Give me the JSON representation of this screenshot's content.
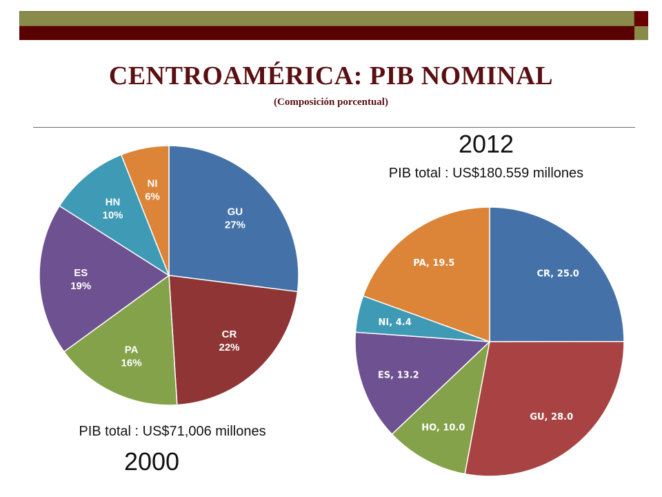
{
  "header": {
    "title": "CENTROAMÉRICA: PIB NOMINAL",
    "subtitle": "(Composición porcentual)"
  },
  "chart_data": [
    {
      "type": "pie",
      "year": "2000",
      "total": "PIB total :  US$71,006  millones",
      "slices": [
        {
          "label": "GU",
          "value": 27,
          "display": "27%",
          "color": "#4472a8"
        },
        {
          "label": "CR",
          "value": 22,
          "display": "22%",
          "color": "#8f3535"
        },
        {
          "label": "PA",
          "value": 16,
          "display": "16%",
          "color": "#84a24a"
        },
        {
          "label": "ES",
          "value": 19,
          "display": "19%",
          "color": "#6e5190"
        },
        {
          "label": "HN",
          "value": 10,
          "display": "10%",
          "color": "#3e9ab5"
        },
        {
          "label": "NI",
          "value": 6,
          "display": "6%",
          "color": "#dc8438"
        }
      ]
    },
    {
      "type": "pie",
      "year": "2012",
      "total": "PIB total :  US$180.559 millones",
      "slices": [
        {
          "label": "CR",
          "value": 25.0,
          "display": "CR, 25.0",
          "color": "#4472a8"
        },
        {
          "label": "GU",
          "value": 28.0,
          "display": "GU, 28.0",
          "color": "#a94343"
        },
        {
          "label": "HO",
          "value": 10.0,
          "display": "HO, 10.0",
          "color": "#84a24a"
        },
        {
          "label": "ES",
          "value": 13.2,
          "display": "ES, 13.2",
          "color": "#6e5190"
        },
        {
          "label": "NI",
          "value": 4.4,
          "display": "NI, 4.4",
          "color": "#3e9ab5"
        },
        {
          "label": "PA",
          "value": 19.5,
          "display": "PA, 19.5",
          "color": "#dc8438"
        }
      ]
    }
  ]
}
